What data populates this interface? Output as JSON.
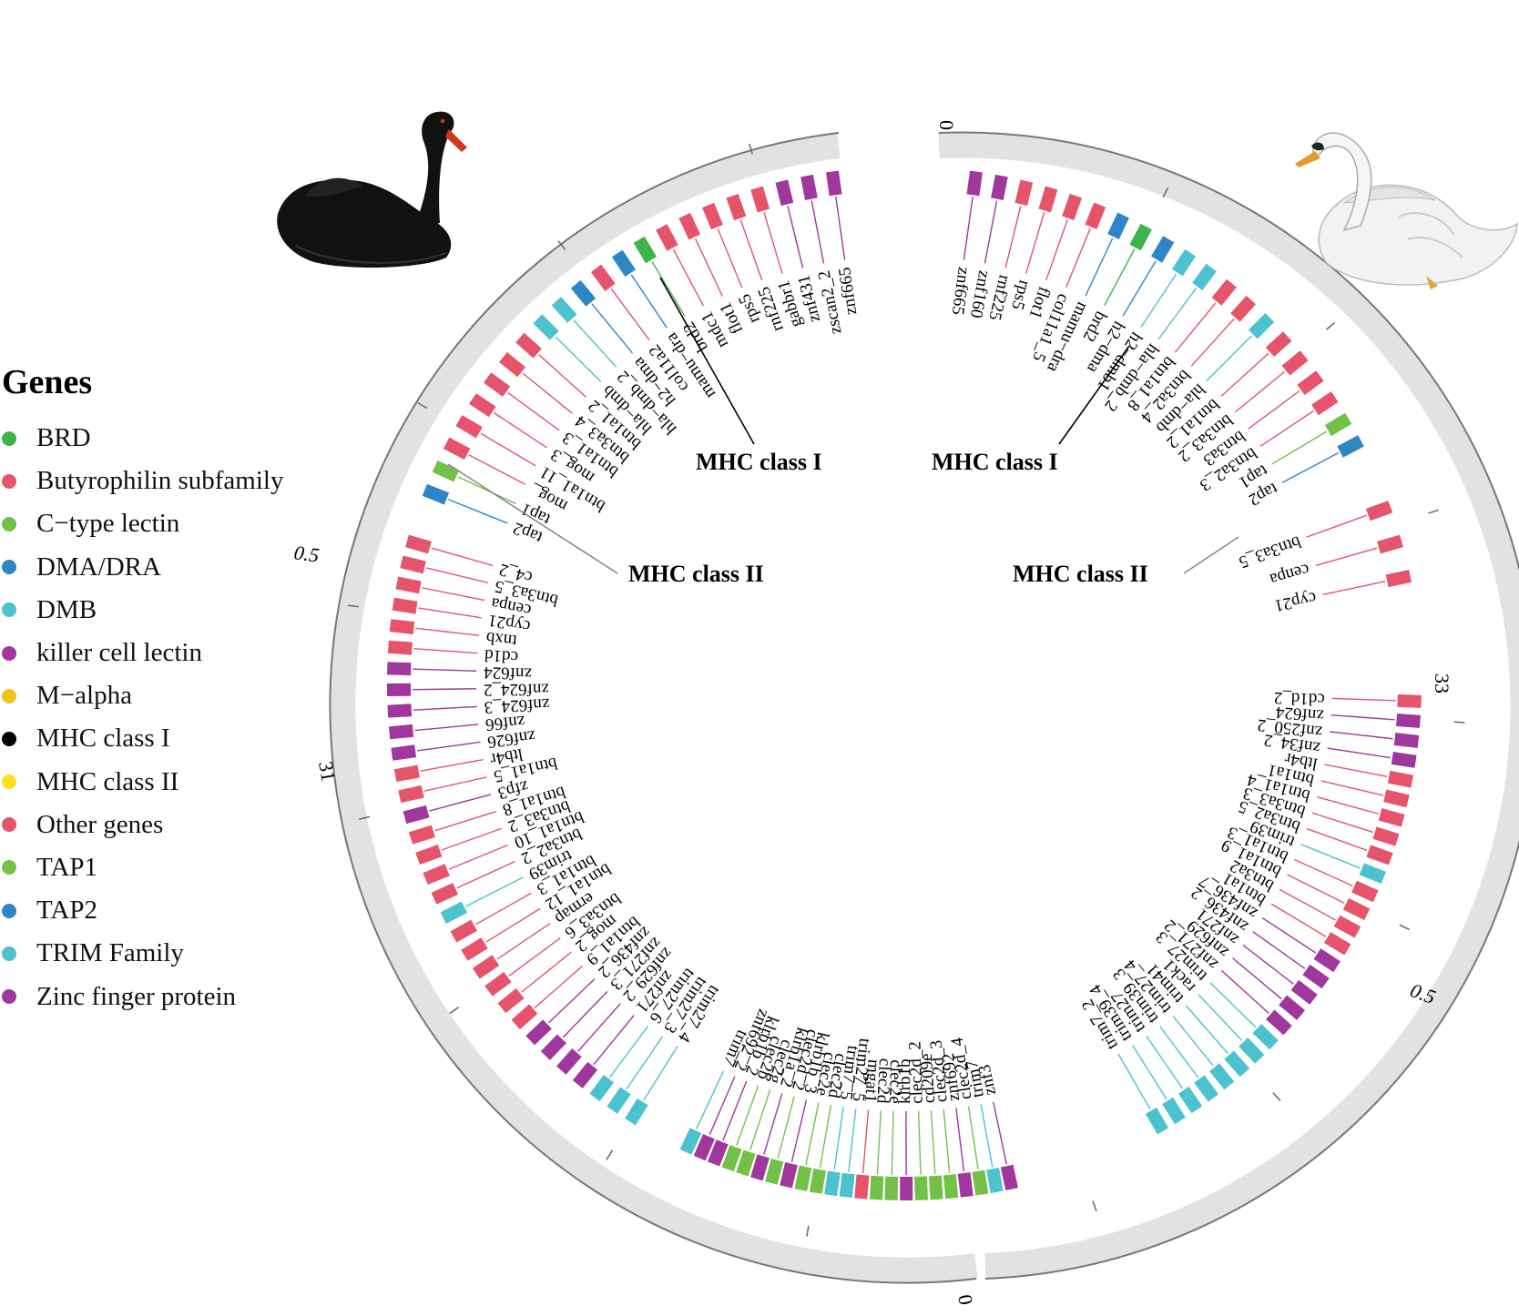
{
  "legend": {
    "title": "Genes",
    "items": [
      {
        "label": "BRD",
        "color": "#3cb44b"
      },
      {
        "label": "Butyrophilin subfamily",
        "color": "#e5546b"
      },
      {
        "label": "C−type lectin",
        "color": "#74c14a"
      },
      {
        "label": "DMA/DRA",
        "color": "#2f86c6"
      },
      {
        "label": "DMB",
        "color": "#4cc2cf"
      },
      {
        "label": "killer cell lectin",
        "color": "#a0379c"
      },
      {
        "label": "M−alpha",
        "color": "#f2c21c"
      },
      {
        "label": "MHC class I",
        "color": "#000000"
      },
      {
        "label": "MHC class II",
        "color": "#f9e21c"
      },
      {
        "label": "Other genes",
        "color": "#e5546b"
      },
      {
        "label": "TAP1",
        "color": "#74c14a"
      },
      {
        "label": "TAP2",
        "color": "#2f86c6"
      },
      {
        "label": "TRIM Family",
        "color": "#4cc2cf"
      },
      {
        "label": "Zinc finger protein",
        "color": "#a0379c"
      }
    ]
  },
  "axis_labels": {
    "top": "0",
    "bottom": "0",
    "left_mid": "0.5",
    "left_end": "31",
    "right_end": "33",
    "right_mid": "0.5"
  },
  "region_labels": {
    "left_class_i": "MHC class I",
    "left_class_ii": "MHC class II",
    "right_class_i": "MHC class I",
    "right_class_ii": "MHC class II"
  },
  "genes": {
    "left_top": [
      "znf665",
      "zscan2_2",
      "znf431",
      "gabbr1",
      "rnf225",
      "rps5",
      "flot1",
      "mdc1",
      "brd2",
      "mamu−dra",
      "col11a2",
      "h2−dma",
      "hla−dmb_2",
      "hla−dmb",
      "btn1a1_2",
      "btn3a3_4",
      "btn1a1_3",
      "mog_3",
      "btn1a1_11",
      "mog_",
      "tap1",
      "tap2"
    ],
    "left_mid": [
      "c4_2",
      "btn3a3_5",
      "cenpa",
      "cyp21",
      "tnxb",
      "cd1d",
      "znf624",
      "znf624_2",
      "znf624_3",
      "znf66",
      "znf626",
      "ltb4r",
      "btn1a1_5",
      "zfp3",
      "btn1a1_8",
      "btn3a3_2",
      "btn1a1_10",
      "btn3a2_2",
      "trim39",
      "btn1a1_3",
      "btn1a1_12",
      "ermap",
      "btn3a3_6",
      "mog_2",
      "btn1a1_9",
      "znf436_2",
      "znf271_3",
      "znf629_2",
      "znf271",
      "trim27_6",
      "trim27_3",
      "trim27_4"
    ],
    "bottom": [
      "trim7",
      "znf692_2",
      "klrb1b_2",
      "clec2b",
      "clec2g",
      "klrb1a_2",
      "clec2d_2",
      "klrb1b_3",
      "clec2e",
      "clec2d",
      "trim7_5",
      "trim27_5",
      "mgat1",
      "clec2d",
      "clec2e",
      "klrb1b",
      "clec2d_2",
      "cd209e",
      "clec2d_3",
      "znf692",
      "clec2d_4",
      "trim7",
      "znf3"
    ],
    "right_top": [
      "znf665",
      "znf160",
      "rnf225",
      "rps5",
      "flot1",
      "col11a1_5",
      "mamu−dra",
      "brd2",
      "h2−dma",
      "h2−dmb1",
      "hla−dmb_2",
      "btn1a1_8",
      "btn3a2_4",
      "hla−dmb",
      "btn1a1_2",
      "btn3a3_2",
      "btn3a3",
      "btn3a2_3",
      "tap1",
      "tap2"
    ],
    "right_mid": [
      "btn3a3_5",
      "cenpa",
      "cyp21"
    ],
    "right_lower": [
      "cd1d_2",
      "znf624",
      "znf250_2",
      "znf34_2",
      "ltb4r",
      "btn1a1",
      "btn1a1_4",
      "btn3a3_3",
      "btn3a2_5",
      "trim39",
      "btn1a1_3",
      "btn1a1_9",
      "btn3a2",
      "btn1a1",
      "znf436_7",
      "znf436_2",
      "znf271",
      "znf629",
      "znf271_2",
      "trim27_3",
      "rack1",
      "trim41",
      "trim27_4",
      "trim39_3",
      "trim27",
      "trim39_4",
      "trim7_2"
    ]
  },
  "icons": {
    "left_bird": "black-swan",
    "right_bird": "mute-swan"
  }
}
